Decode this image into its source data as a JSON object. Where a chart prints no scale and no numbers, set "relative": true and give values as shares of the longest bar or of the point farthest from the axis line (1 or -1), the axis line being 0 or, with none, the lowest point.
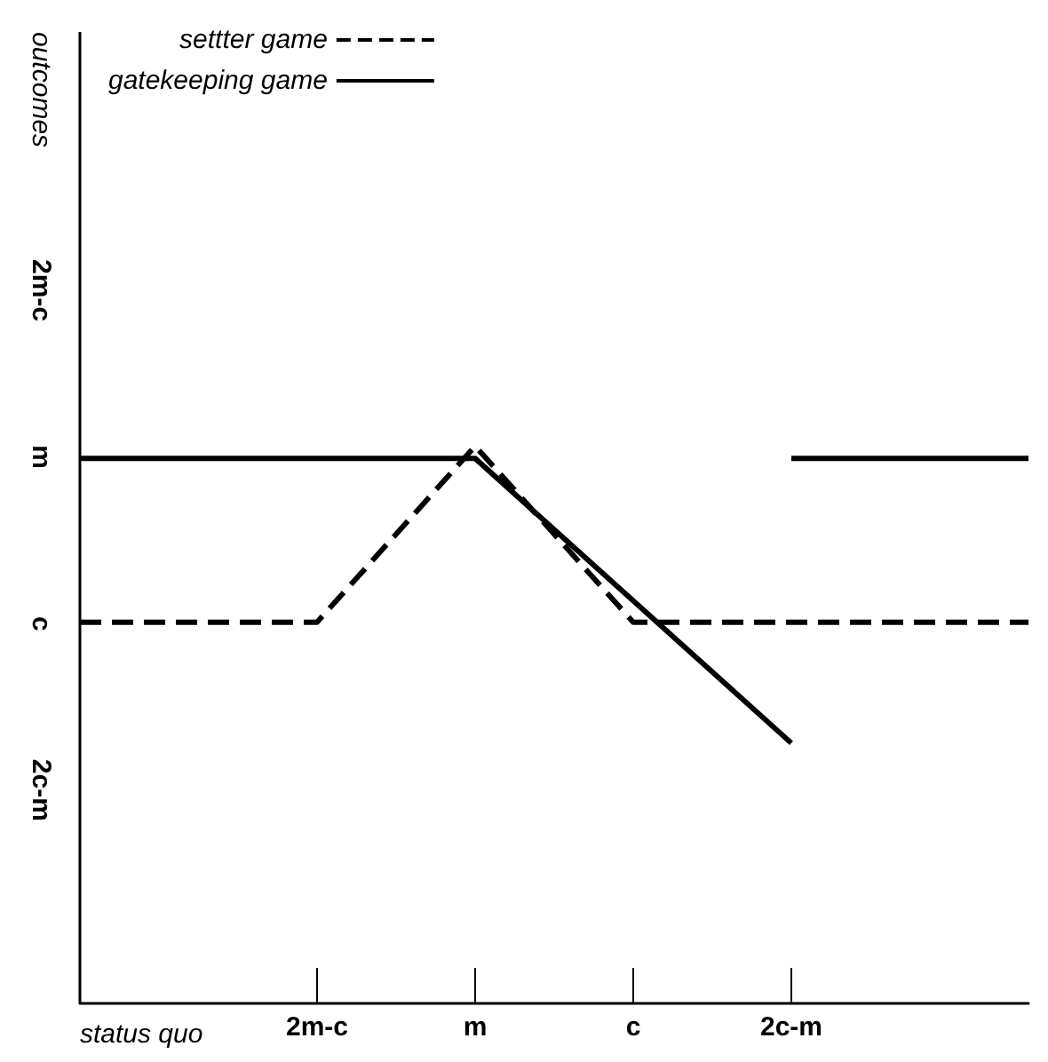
{
  "chart_data": {
    "type": "line",
    "relative": true,
    "xlabel": "status quo",
    "categories": [
      null,
      null,
      null,
      "2m-c",
      null,
      "m",
      null,
      "c",
      null,
      "2c-m",
      null,
      null,
      null
    ],
    "annotations": [
      "outcomes",
      "2m-c",
      "m",
      "c",
      "2c-m"
    ],
    "series": [
      {
        "name": "settter game",
        "color": "#000000",
        "line_style": "dashed",
        "values": [
          0.684,
          null,
          null,
          0.684,
          null,
          1.0,
          null,
          0.684,
          null,
          null,
          null,
          null,
          0.684
        ]
      },
      {
        "name": "gatekeeping game",
        "color": "#000000",
        "line_style": "solid",
        "values": [
          0.978,
          null,
          null,
          null,
          null,
          0.978,
          null,
          null,
          null,
          0.467,
          null,
          null,
          null
        ]
      },
      {
        "color": "#000000",
        "line_style": "solid",
        "values": [
          null,
          null,
          null,
          null,
          null,
          null,
          null,
          null,
          null,
          0.978,
          null,
          null,
          0.978
        ]
      }
    ],
    "grid": false,
    "legend": "top left",
    "marker": "none"
  }
}
